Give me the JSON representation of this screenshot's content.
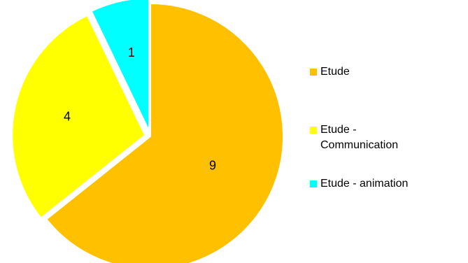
{
  "chart_data": {
    "type": "pie",
    "title": "",
    "legend_position": "right",
    "slices": [
      {
        "label": "Etude",
        "legend_label": "Etude",
        "value": 9,
        "color": "#FFC000"
      },
      {
        "label": "Etude - Communication",
        "legend_label": "Etude -\nCommunication",
        "value": 4,
        "color": "#FFFF00"
      },
      {
        "label": "Etude - animation",
        "legend_label": "Etude - animation",
        "value": 1,
        "color": "#00FFFF"
      }
    ]
  }
}
